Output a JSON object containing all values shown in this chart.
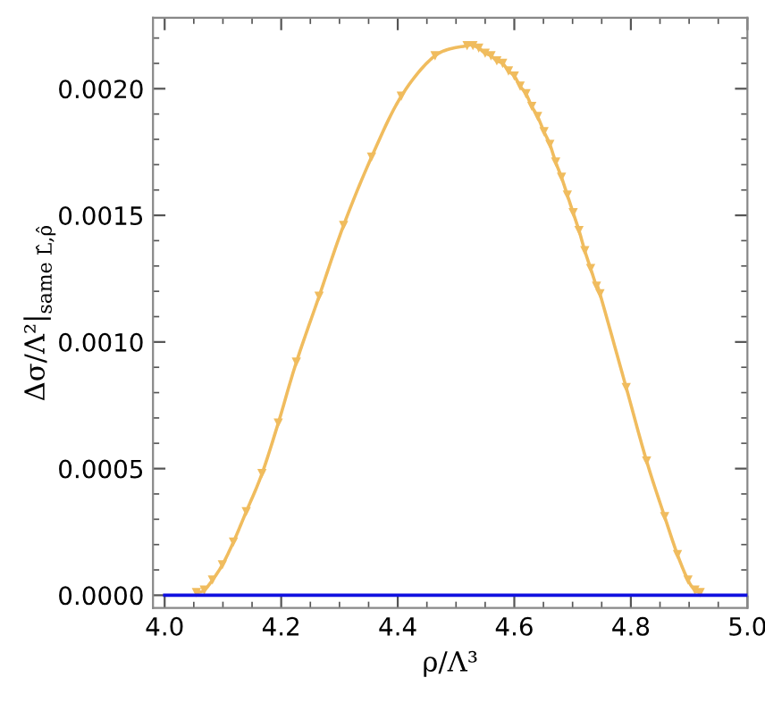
{
  "chart_data": {
    "type": "line",
    "xlabel": "ρ/Λ³",
    "ylabel": "Δσ/Λ²|$_{same L̂,ρ̂}$",
    "xlim": [
      3.98,
      5.0
    ],
    "ylim": [
      -5e-05,
      0.00228
    ],
    "xticks": [
      {
        "value": 4.0,
        "label": "4.0"
      },
      {
        "value": 4.2,
        "label": "4.2"
      },
      {
        "value": 4.4,
        "label": "4.4"
      },
      {
        "value": 4.6,
        "label": "4.6"
      },
      {
        "value": 4.8,
        "label": "4.8"
      },
      {
        "value": 5.0,
        "label": "5.0"
      }
    ],
    "yticks": [
      {
        "value": 0,
        "label": "0.0000"
      },
      {
        "value": 0.0005,
        "label": "0.0005"
      },
      {
        "value": 0.001,
        "label": "0.0010"
      },
      {
        "value": 0.0015,
        "label": "0.0015"
      },
      {
        "value": 0.002,
        "label": "0.0020"
      }
    ],
    "grid": false,
    "series": [
      {
        "color": "#f0bc5e",
        "line_style": "solid",
        "marker": "none",
        "x": [
          4.0545,
          4.068,
          4.082,
          4.099,
          4.118,
          4.14,
          4.167,
          4.195,
          4.226,
          4.265,
          4.307,
          4.355,
          4.406,
          4.464,
          4.519,
          4.529,
          4.539,
          4.55,
          4.56,
          4.57,
          4.58,
          4.59,
          4.6,
          4.61,
          4.62,
          4.63,
          4.64,
          4.651,
          4.661,
          4.671,
          4.681,
          4.691,
          4.701,
          4.711,
          4.721,
          4.731,
          4.741,
          4.747,
          4.792,
          4.827,
          4.858,
          4.88,
          4.898,
          4.91,
          4.919
        ],
        "values": [
          1e-05,
          2e-05,
          6e-05,
          0.00012,
          0.00021,
          0.00033,
          0.00048,
          0.00068,
          0.00092,
          0.00118,
          0.00146,
          0.00173,
          0.00197,
          0.00213,
          0.00217,
          0.00217,
          0.00216,
          0.00214,
          0.00213,
          0.00211,
          0.0021,
          0.00207,
          0.00205,
          0.00201,
          0.00198,
          0.00193,
          0.00189,
          0.00183,
          0.00178,
          0.00171,
          0.00165,
          0.00158,
          0.00151,
          0.00144,
          0.00136,
          0.00129,
          0.00122,
          0.00119,
          0.00082,
          0.00053,
          0.00031,
          0.00016,
          6e-05,
          2e-05,
          1e-05
        ]
      },
      {
        "type": "scatter",
        "color": "#f0bc5e",
        "marker": "triangle",
        "x": [
          4.0545,
          4.068,
          4.082,
          4.099,
          4.118,
          4.14,
          4.167,
          4.195,
          4.226,
          4.265,
          4.307,
          4.355,
          4.406,
          4.464,
          4.519,
          4.529,
          4.539,
          4.55,
          4.56,
          4.57,
          4.58,
          4.59,
          4.6,
          4.61,
          4.62,
          4.63,
          4.64,
          4.651,
          4.661,
          4.671,
          4.681,
          4.691,
          4.701,
          4.711,
          4.721,
          4.731,
          4.741,
          4.747,
          4.792,
          4.827,
          4.858,
          4.88,
          4.898,
          4.91,
          4.919
        ],
        "values": [
          1e-05,
          2e-05,
          6e-05,
          0.00012,
          0.00021,
          0.00033,
          0.00048,
          0.00068,
          0.00092,
          0.00118,
          0.00146,
          0.00173,
          0.00197,
          0.00213,
          0.00217,
          0.00217,
          0.00216,
          0.00214,
          0.00213,
          0.00211,
          0.0021,
          0.00207,
          0.00205,
          0.00201,
          0.00198,
          0.00193,
          0.00189,
          0.00183,
          0.00178,
          0.00171,
          0.00165,
          0.00158,
          0.00151,
          0.00144,
          0.00136,
          0.00129,
          0.00122,
          0.00119,
          0.00082,
          0.00053,
          0.00031,
          0.00016,
          6e-05,
          2e-05,
          1e-05
        ]
      },
      {
        "color": "#1010e0",
        "line_style": "solid",
        "marker": "none",
        "x": [
          4.0,
          5.0
        ],
        "values": [
          0,
          0
        ]
      }
    ]
  }
}
